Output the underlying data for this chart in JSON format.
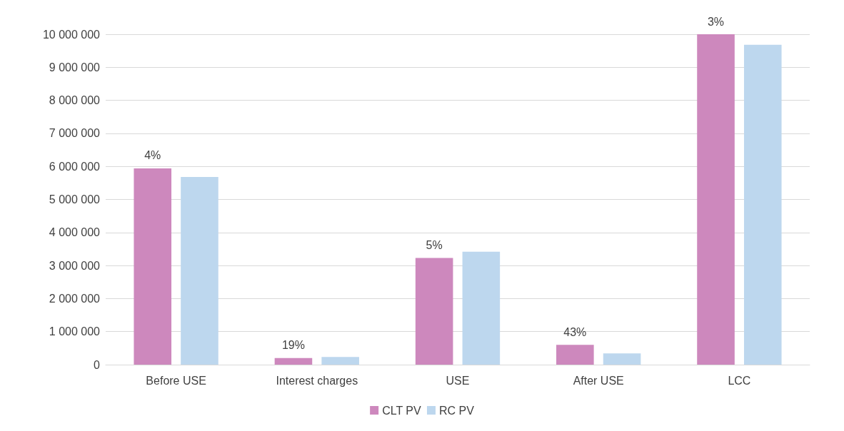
{
  "chart_data": {
    "type": "bar",
    "categories": [
      "Before USE",
      "Interest charges",
      "USE",
      "After USE",
      "LCC"
    ],
    "series": [
      {
        "name": "CLT PV",
        "color": "#cd88bd",
        "values": [
          5940000,
          200000,
          3230000,
          600000,
          10000000
        ]
      },
      {
        "name": "RC PV",
        "color": "#bdd7ee",
        "values": [
          5680000,
          230000,
          3420000,
          340000,
          9680000
        ]
      }
    ],
    "ylim": [
      0,
      10000000
    ],
    "yticks": [
      {
        "value": 0,
        "label": "0"
      },
      {
        "value": 1000000,
        "label": "1 000 000"
      },
      {
        "value": 2000000,
        "label": "2 000 000"
      },
      {
        "value": 3000000,
        "label": "3 000 000"
      },
      {
        "value": 4000000,
        "label": "4 000 000"
      },
      {
        "value": 5000000,
        "label": "5 000 000"
      },
      {
        "value": 6000000,
        "label": "6 000 000"
      },
      {
        "value": 7000000,
        "label": "7 000 000"
      },
      {
        "value": 8000000,
        "label": "8 000 000"
      },
      {
        "value": 9000000,
        "label": "9 000 000"
      },
      {
        "value": 10000000,
        "label": "10 000 000"
      }
    ],
    "annotations": [
      "4%",
      "19%",
      "5%",
      "43%",
      "3%"
    ],
    "grid": "y",
    "legend": "bottom"
  }
}
